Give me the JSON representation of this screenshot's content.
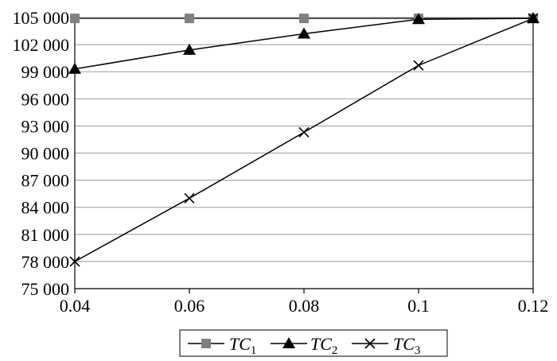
{
  "chart_data": {
    "type": "line",
    "x": [
      0.04,
      0.06,
      0.08,
      0.1,
      0.12
    ],
    "x_tick_labels": [
      "0.04",
      "0.06",
      "0.08",
      "0.1",
      "0.12"
    ],
    "y_tick_labels": [
      "75 000",
      "78 000",
      "81 000",
      "84 000",
      "87 000",
      "90 000",
      "93 000",
      "96 000",
      "99 000",
      "102 000",
      "105 000"
    ],
    "y_ticks": [
      75000,
      78000,
      81000,
      84000,
      87000,
      90000,
      93000,
      96000,
      99000,
      102000,
      105000
    ],
    "xlim": [
      0.04,
      0.12
    ],
    "ylim": [
      75000,
      105000
    ],
    "grid": "horizontal",
    "legend_position": "bottom",
    "series": [
      {
        "name": "TC",
        "subscript": "1",
        "marker": "square",
        "color": "#808080",
        "values": [
          104900,
          104900,
          104900,
          104900,
          104900
        ]
      },
      {
        "name": "TC",
        "subscript": "2",
        "marker": "triangle",
        "color": "#000000",
        "values": [
          99300,
          101400,
          103200,
          104800,
          104900
        ]
      },
      {
        "name": "TC",
        "subscript": "3",
        "marker": "x",
        "color": "#000000",
        "values": [
          78000,
          85000,
          92300,
          99700,
          104900
        ]
      }
    ]
  }
}
